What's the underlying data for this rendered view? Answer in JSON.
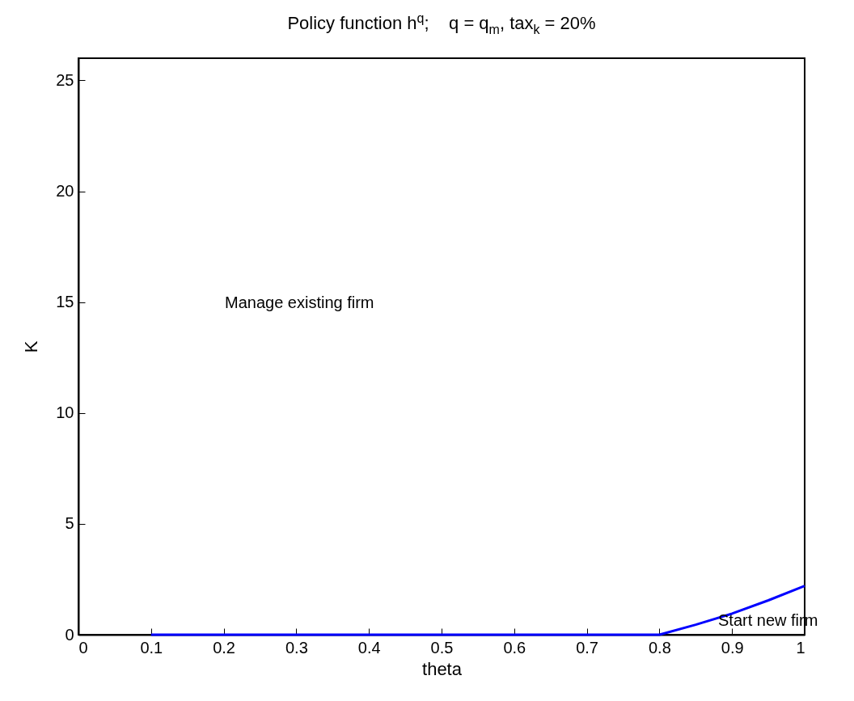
{
  "chart_data": {
    "type": "line",
    "title": "Policy function h$^{q}$;    q = q$_{m}$, tax$_{k}$ = 20%",
    "xlabel": "theta",
    "ylabel": "K",
    "x": [
      0.1,
      0.2,
      0.3,
      0.4,
      0.5,
      0.6,
      0.7,
      0.8,
      0.85,
      0.9,
      0.95,
      1
    ],
    "series": [
      {
        "color": "#0000ff",
        "values": [
          0,
          0,
          0,
          0,
          0,
          0,
          0,
          0,
          0.45,
          0.95,
          1.55,
          2.2
        ]
      }
    ],
    "xlim": [
      0,
      1
    ],
    "xticks": [
      0,
      0.1,
      0.2,
      0.3,
      0.4,
      0.5,
      0.6,
      0.7,
      0.8,
      0.9,
      1
    ],
    "ylim": [
      0,
      26
    ],
    "yticks": [
      0,
      5,
      10,
      15,
      20,
      25
    ],
    "annotations": [
      "Manage existing firm",
      "Start new firm"
    ],
    "grid": false,
    "line_style": "solid",
    "marker": "none"
  }
}
